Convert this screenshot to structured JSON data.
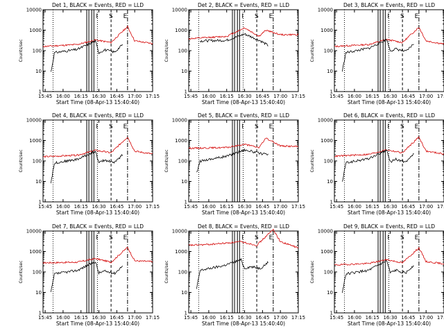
{
  "chart_data": [
    {
      "type": "line",
      "title": "Det 1, BLACK = Events, RED = LLD",
      "xlabel": "Start Time (08-Apr-13 15:40:40)",
      "ylabel": "Counts/sec",
      "ev": [
        [
          15.83,
          9
        ],
        [
          15.88,
          80
        ],
        [
          16.2,
          115
        ],
        [
          16.45,
          300
        ],
        [
          16.5,
          80
        ],
        [
          16.58,
          110
        ],
        [
          16.72,
          85
        ],
        [
          16.83,
          200
        ]
      ],
      "lld": [
        [
          15.72,
          160
        ],
        [
          16.2,
          200
        ],
        [
          16.45,
          330
        ],
        [
          16.67,
          250
        ],
        [
          16.9,
          1500
        ],
        [
          17.0,
          300
        ],
        [
          17.25,
          220
        ]
      ]
    },
    {
      "type": "line",
      "title": "Det 2, BLACK = Events, RED = LLD",
      "xlabel": "Start Time (08-Apr-13 15:40:40)",
      "ylabel": "Counts/sec",
      "ev": [
        [
          15.88,
          300
        ],
        [
          16.25,
          320
        ],
        [
          16.5,
          650
        ],
        [
          16.7,
          330
        ],
        [
          16.83,
          180
        ]
      ],
      "lld": [
        [
          15.72,
          380
        ],
        [
          16.25,
          500
        ],
        [
          16.5,
          1300
        ],
        [
          16.7,
          500
        ],
        [
          16.8,
          1000
        ],
        [
          17.0,
          600
        ],
        [
          17.25,
          600
        ]
      ]
    },
    {
      "type": "line",
      "title": "Det 3, BLACK = Events, RED = LLD",
      "xlabel": "Start Time (08-Apr-13 15:40:40)",
      "ylabel": "Counts/sec",
      "ev": [
        [
          15.83,
          10
        ],
        [
          15.88,
          80
        ],
        [
          16.2,
          130
        ],
        [
          16.45,
          350
        ],
        [
          16.5,
          100
        ],
        [
          16.58,
          120
        ],
        [
          16.72,
          90
        ],
        [
          16.83,
          220
        ]
      ],
      "lld": [
        [
          15.72,
          160
        ],
        [
          16.2,
          200
        ],
        [
          16.45,
          350
        ],
        [
          16.67,
          250
        ],
        [
          16.9,
          1400
        ],
        [
          17.0,
          300
        ],
        [
          17.25,
          210
        ]
      ]
    },
    {
      "type": "line",
      "title": "Det 4, BLACK = Events, RED = LLD",
      "xlabel": "Start Time (08-Apr-13 15:40:40)",
      "ylabel": "Counts/sec",
      "ev": [
        [
          15.83,
          9
        ],
        [
          15.88,
          80
        ],
        [
          16.2,
          120
        ],
        [
          16.45,
          300
        ],
        [
          16.5,
          80
        ],
        [
          16.58,
          110
        ],
        [
          16.72,
          85
        ],
        [
          16.83,
          200
        ]
      ],
      "lld": [
        [
          15.72,
          160
        ],
        [
          16.2,
          190
        ],
        [
          16.45,
          330
        ],
        [
          16.67,
          250
        ],
        [
          16.9,
          1500
        ],
        [
          17.0,
          300
        ],
        [
          17.25,
          220
        ]
      ]
    },
    {
      "type": "line",
      "title": "Det 5, BLACK = Events, RED = LLD",
      "xlabel": "Start Time (08-Apr-13 15:40:40)",
      "ylabel": "Counts/sec",
      "ev": [
        [
          15.83,
          25
        ],
        [
          15.88,
          100
        ],
        [
          16.25,
          170
        ],
        [
          16.5,
          350
        ],
        [
          16.7,
          240
        ],
        [
          16.83,
          200
        ]
      ],
      "lld": [
        [
          15.72,
          420
        ],
        [
          16.25,
          450
        ],
        [
          16.5,
          650
        ],
        [
          16.7,
          450
        ],
        [
          16.8,
          1300
        ],
        [
          17.0,
          550
        ],
        [
          17.25,
          500
        ]
      ]
    },
    {
      "type": "line",
      "title": "Det 6, BLACK = Events, RED = LLD",
      "xlabel": "Start Time (08-Apr-13 15:40:40)",
      "ylabel": "Counts/sec",
      "ev": [
        [
          15.83,
          9
        ],
        [
          15.88,
          80
        ],
        [
          16.2,
          130
        ],
        [
          16.45,
          330
        ],
        [
          16.5,
          90
        ],
        [
          16.58,
          120
        ],
        [
          16.72,
          85
        ],
        [
          16.83,
          220
        ]
      ],
      "lld": [
        [
          15.72,
          170
        ],
        [
          16.2,
          210
        ],
        [
          16.45,
          350
        ],
        [
          16.67,
          250
        ],
        [
          16.9,
          1500
        ],
        [
          17.0,
          300
        ],
        [
          17.25,
          220
        ]
      ]
    },
    {
      "type": "line",
      "title": "Det 7, BLACK = Events, RED = LLD",
      "xlabel": "Start Time (08-Apr-13 15:40:40)",
      "ylabel": "Counts/sec",
      "ev": [
        [
          15.83,
          10
        ],
        [
          15.88,
          80
        ],
        [
          16.2,
          120
        ],
        [
          16.45,
          320
        ],
        [
          16.5,
          90
        ],
        [
          16.58,
          110
        ],
        [
          16.72,
          85
        ],
        [
          16.83,
          200
        ]
      ],
      "lld": [
        [
          15.72,
          280
        ],
        [
          16.2,
          300
        ],
        [
          16.45,
          450
        ],
        [
          16.67,
          300
        ],
        [
          16.9,
          1600
        ],
        [
          17.0,
          350
        ],
        [
          17.25,
          320
        ]
      ]
    },
    {
      "type": "line",
      "title": "Det 8, BLACK = Events, RED = LLD",
      "xlabel": "Start Time (08-Apr-13 15:40:40)",
      "ylabel": "Counts/sec",
      "ev": [
        [
          15.83,
          15
        ],
        [
          15.88,
          120
        ],
        [
          16.2,
          200
        ],
        [
          16.45,
          400
        ],
        [
          16.5,
          150
        ],
        [
          16.58,
          180
        ],
        [
          16.72,
          150
        ],
        [
          16.83,
          300
        ]
      ],
      "lld": [
        [
          15.72,
          2000
        ],
        [
          16.0,
          2200
        ],
        [
          16.2,
          2500
        ],
        [
          16.45,
          3000
        ],
        [
          16.67,
          2000
        ],
        [
          16.9,
          12000
        ],
        [
          17.0,
          3000
        ],
        [
          17.25,
          1500
        ]
      ]
    },
    {
      "type": "line",
      "title": "Det 9, BLACK = Events, RED = LLD",
      "xlabel": "Start Time (08-Apr-13 15:40:40)",
      "ylabel": "Counts/sec",
      "ev": [
        [
          15.83,
          10
        ],
        [
          15.88,
          80
        ],
        [
          16.2,
          120
        ],
        [
          16.45,
          350
        ],
        [
          16.5,
          90
        ],
        [
          16.58,
          120
        ],
        [
          16.72,
          90
        ],
        [
          16.83,
          220
        ]
      ],
      "lld": [
        [
          15.72,
          220
        ],
        [
          16.2,
          260
        ],
        [
          16.45,
          400
        ],
        [
          16.67,
          280
        ],
        [
          16.9,
          1500
        ],
        [
          17.0,
          320
        ],
        [
          17.25,
          250
        ]
      ]
    }
  ],
  "axes": {
    "xticks": [
      "15:45",
      "16:00",
      "16:15",
      "16:30",
      "16:45",
      "17:00",
      "17:15"
    ],
    "yticks": [
      "1",
      "10",
      "100",
      "1000",
      "10000"
    ],
    "xlim": [
      15.72,
      17.25
    ],
    "ylim": [
      1,
      10000
    ],
    "yscale": "log"
  },
  "markers": [
    "I",
    "S",
    "E"
  ],
  "colors": {
    "events": "#000000",
    "lld": "#d40000"
  }
}
